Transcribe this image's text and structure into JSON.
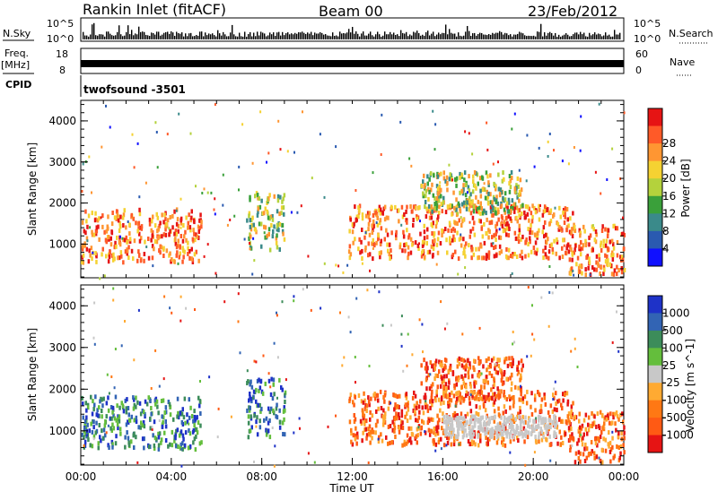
{
  "header": {
    "station": "Rankin Inlet (fitACF)",
    "beam": "Beam 00",
    "date": "23/Feb/2012"
  },
  "aux": {
    "nsky_label": "N.Sky",
    "nsky_ticks": [
      "10^5",
      "10^0"
    ],
    "nsearch_label": "N.Search",
    "nsearch_ticks": [
      "10^5",
      "10^0"
    ],
    "freq_label_1": "Freq.",
    "freq_label_2": "[MHz]",
    "freq_ticks": [
      "18",
      "8"
    ],
    "nave_label": "Nave",
    "nave_ticks": [
      "60",
      "0"
    ],
    "cpid_label": "CPID",
    "cpid_value": "twofsound -3501"
  },
  "chart_data": [
    {
      "type": "heatmap",
      "name": "power-panel",
      "ylabel": "Slant Range [km]",
      "ylim": [
        180,
        4500
      ],
      "yticks": [
        "1000",
        "2000",
        "3000",
        "4000"
      ],
      "xlim_hours": [
        0,
        24
      ],
      "colorbar_label": "Power [dB]",
      "colorbar_ticks": [
        "4",
        "8",
        "12",
        "16",
        "20",
        "24",
        "28"
      ],
      "colorbar_colors": [
        "#1010ff",
        "#2a5ab0",
        "#3a8a8a",
        "#3aa03a",
        "#b4d23c",
        "#f5d232",
        "#ff9632",
        "#ff5a28",
        "#e61414"
      ],
      "echo_regions": [
        {
          "t_start": 0.0,
          "t_end": 5.3,
          "r_low": 600,
          "r_high": 1900,
          "level": "high"
        },
        {
          "t_start": 7.3,
          "t_end": 9.0,
          "r_low": 900,
          "r_high": 2300,
          "level": "medium"
        },
        {
          "t_start": 11.8,
          "t_end": 21.8,
          "r_low": 700,
          "r_high": 2000,
          "level": "high"
        },
        {
          "t_start": 15.0,
          "t_end": 19.5,
          "r_low": 1800,
          "r_high": 2800,
          "level": "medium"
        },
        {
          "t_start": 21.5,
          "t_end": 24.0,
          "r_low": 300,
          "r_high": 1500,
          "level": "high"
        }
      ]
    },
    {
      "type": "heatmap",
      "name": "velocity-panel",
      "ylabel": "Slant Range [km]",
      "ylim": [
        180,
        4500
      ],
      "yticks": [
        "1000",
        "2000",
        "3000",
        "4000"
      ],
      "xlabel": "Time UT",
      "xticks": [
        "00:00",
        "04:00",
        "08:00",
        "12:00",
        "16:00",
        "20:00",
        "00:00"
      ],
      "colorbar_label": "Velocity [m s^-1]",
      "colorbar_ticks": [
        "1000",
        "500",
        "100",
        "25",
        "-25",
        "-100",
        "-500",
        "-1000"
      ],
      "colorbar_colors": [
        "#1e32c8",
        "#3264b4",
        "#3c8c5a",
        "#64be3c",
        "#c8c8c8",
        "#ffaa32",
        "#ff7814",
        "#ff5a14",
        "#e61414"
      ],
      "echo_regions": [
        {
          "t_start": 0.0,
          "t_end": 5.3,
          "r_low": 600,
          "r_high": 1900,
          "sign": "toward"
        },
        {
          "t_start": 7.3,
          "t_end": 9.0,
          "r_low": 900,
          "r_high": 2300,
          "sign": "toward"
        },
        {
          "t_start": 11.8,
          "t_end": 21.8,
          "r_low": 700,
          "r_high": 2000,
          "sign": "away"
        },
        {
          "t_start": 15.0,
          "t_end": 19.5,
          "r_low": 1800,
          "r_high": 2800,
          "sign": "away"
        },
        {
          "t_start": 16.0,
          "t_end": 21.0,
          "r_low": 900,
          "r_high": 1400,
          "sign": "ground"
        },
        {
          "t_start": 21.5,
          "t_end": 24.0,
          "r_low": 300,
          "r_high": 1500,
          "sign": "away"
        }
      ]
    }
  ]
}
